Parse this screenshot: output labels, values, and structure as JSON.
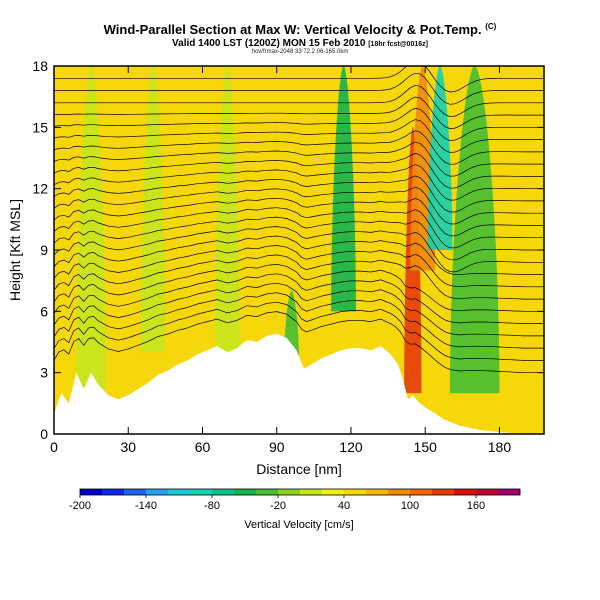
{
  "header": {
    "title": "Wind-Parallel Section at Max W: Vertical Velocity & Pot.Temp.",
    "copyright": "(C)",
    "valid": "Valid 1400 LST (1200Z) MON 15 Feb 2010",
    "forecast": "[18hr fcst@0016z]",
    "file": "hov/frmax-2048 33 72.2 06-165.0km"
  },
  "colors": {
    "plot_bg": "#f5d70a",
    "terrain": "#ffffff"
  },
  "chart_data": {
    "type": "heatmap",
    "xlabel": "Distance [nm]",
    "ylabel": "Height [Kft MSL]",
    "xlim": [
      0,
      198
    ],
    "ylim": [
      0,
      18
    ],
    "xticks": [
      0,
      30,
      60,
      90,
      120,
      150,
      180
    ],
    "yticks": [
      0,
      3,
      6,
      9,
      12,
      15,
      18
    ],
    "colorbar": {
      "label": "Vertical Velocity [cm/s]",
      "ticks": [
        -200,
        -140,
        -80,
        -20,
        40,
        100,
        160
      ],
      "bins": [
        {
          "value": -200,
          "color": "#0000c8"
        },
        {
          "value": -180,
          "color": "#0a28e6"
        },
        {
          "value": -160,
          "color": "#1e64f0"
        },
        {
          "value": -140,
          "color": "#28a0f0"
        },
        {
          "value": -120,
          "color": "#1ec8dc"
        },
        {
          "value": -100,
          "color": "#14d2b4"
        },
        {
          "value": -80,
          "color": "#10c08c"
        },
        {
          "value": -60,
          "color": "#14b450"
        },
        {
          "value": -40,
          "color": "#46be32"
        },
        {
          "value": -20,
          "color": "#8cd21e"
        },
        {
          "value": 0,
          "color": "#c8e61e"
        },
        {
          "value": 20,
          "color": "#f0f014"
        },
        {
          "value": 40,
          "color": "#f5d70a"
        },
        {
          "value": 60,
          "color": "#f5b40a"
        },
        {
          "value": 80,
          "color": "#f08c0a"
        },
        {
          "value": 100,
          "color": "#f0640a"
        },
        {
          "value": 120,
          "color": "#e63c0a"
        },
        {
          "value": 140,
          "color": "#d2140a"
        },
        {
          "value": 160,
          "color": "#be0a32"
        },
        {
          "value": 180,
          "color": "#a0006e"
        }
      ]
    },
    "terrain": [
      {
        "x": 0,
        "y": 1.0
      },
      {
        "x": 3,
        "y": 2.0
      },
      {
        "x": 6,
        "y": 1.5
      },
      {
        "x": 9,
        "y": 3.0
      },
      {
        "x": 12,
        "y": 2.2
      },
      {
        "x": 15,
        "y": 3.0
      },
      {
        "x": 18,
        "y": 2.4
      },
      {
        "x": 22,
        "y": 1.9
      },
      {
        "x": 26,
        "y": 1.7
      },
      {
        "x": 30,
        "y": 1.9
      },
      {
        "x": 34,
        "y": 2.2
      },
      {
        "x": 38,
        "y": 2.5
      },
      {
        "x": 42,
        "y": 2.9
      },
      {
        "x": 46,
        "y": 3.1
      },
      {
        "x": 50,
        "y": 3.4
      },
      {
        "x": 54,
        "y": 3.6
      },
      {
        "x": 58,
        "y": 3.9
      },
      {
        "x": 62,
        "y": 4.1
      },
      {
        "x": 66,
        "y": 4.3
      },
      {
        "x": 70,
        "y": 4.0
      },
      {
        "x": 74,
        "y": 4.2
      },
      {
        "x": 78,
        "y": 4.6
      },
      {
        "x": 82,
        "y": 4.5
      },
      {
        "x": 86,
        "y": 4.8
      },
      {
        "x": 90,
        "y": 4.9
      },
      {
        "x": 94,
        "y": 4.7
      },
      {
        "x": 98,
        "y": 4.1
      },
      {
        "x": 101,
        "y": 3.2
      },
      {
        "x": 104,
        "y": 3.4
      },
      {
        "x": 108,
        "y": 3.7
      },
      {
        "x": 112,
        "y": 3.9
      },
      {
        "x": 116,
        "y": 4.1
      },
      {
        "x": 120,
        "y": 4.2
      },
      {
        "x": 124,
        "y": 4.2
      },
      {
        "x": 128,
        "y": 4.1
      },
      {
        "x": 132,
        "y": 4.3
      },
      {
        "x": 136,
        "y": 3.9
      },
      {
        "x": 139,
        "y": 3.4
      },
      {
        "x": 141,
        "y": 2.7
      },
      {
        "x": 143,
        "y": 1.7
      },
      {
        "x": 145,
        "y": 1.9
      },
      {
        "x": 147,
        "y": 1.6
      },
      {
        "x": 150,
        "y": 1.3
      },
      {
        "x": 154,
        "y": 1.0
      },
      {
        "x": 158,
        "y": 0.7
      },
      {
        "x": 164,
        "y": 0.4
      },
      {
        "x": 172,
        "y": 0.2
      },
      {
        "x": 180,
        "y": 0.1
      },
      {
        "x": 190,
        "y": 0.0
      },
      {
        "x": 198,
        "y": 0.0
      }
    ],
    "features": [
      {
        "name": "red updraft",
        "x_center": 145,
        "half_width": 3.5,
        "y_from": 2,
        "y_to": 15,
        "value": 120
      },
      {
        "name": "orange updraft",
        "x_center": 149,
        "half_width": 5,
        "y_from": 8,
        "y_to": 18,
        "value": 80
      },
      {
        "name": "green downdraft",
        "x_center": 117,
        "half_width": 5,
        "y_from": 6,
        "y_to": 18,
        "value": -60
      },
      {
        "name": "teal downdraft",
        "x_center": 156,
        "half_width": 5,
        "y_from": 9,
        "y_to": 18,
        "value": -100
      },
      {
        "name": "green downdraft",
        "x_center": 170,
        "half_width": 10,
        "y_from": 2,
        "y_to": 18,
        "value": -40
      },
      {
        "name": "green lee band",
        "x_center": 96,
        "half_width": 3,
        "y_from": 3.5,
        "y_to": 7,
        "value": -40
      },
      {
        "name": "light band",
        "x_center": 15,
        "half_width": 6,
        "y_from": 2,
        "y_to": 18,
        "value": 0
      },
      {
        "name": "light band",
        "x_center": 40,
        "half_width": 5,
        "y_from": 4,
        "y_to": 18,
        "value": 0
      },
      {
        "name": "light band",
        "x_center": 70,
        "half_width": 5,
        "y_from": 4,
        "y_to": 18,
        "value": 0
      }
    ],
    "isentrope_levels": [
      3,
      3.6,
      4.2,
      4.8,
      5.4,
      6,
      6.6,
      7.2,
      7.8,
      8.4,
      9,
      9.6,
      10.2,
      10.8,
      11.4,
      12,
      12.6,
      13.2,
      13.8,
      14.4,
      15,
      15.6,
      16.2,
      16.8,
      17.4
    ]
  }
}
